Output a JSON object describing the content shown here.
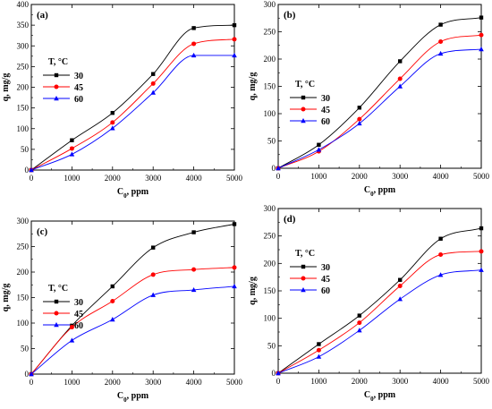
{
  "chart_data": [
    {
      "type": "line",
      "panel_label": "(a)",
      "xlabel_main": "C",
      "xlabel_sub": "0",
      "xlabel_unit": ", ppm",
      "ylabel": "q, mg/g",
      "xlim": [
        0,
        5000
      ],
      "ylim": [
        0,
        400
      ],
      "x_ticks": [
        0,
        1000,
        2000,
        3000,
        4000,
        5000
      ],
      "y_ticks": [
        0,
        50,
        100,
        150,
        200,
        250,
        300,
        350,
        400
      ],
      "legend_title": "T, °C",
      "legend_position": "left",
      "series": [
        {
          "name": "30",
          "color": "#000000",
          "marker": "square",
          "x": [
            0,
            1000,
            2000,
            3000,
            4000,
            5000
          ],
          "y": [
            0,
            72,
            138,
            232,
            343,
            350
          ]
        },
        {
          "name": "45",
          "color": "#ff0000",
          "marker": "circle",
          "x": [
            0,
            1000,
            2000,
            3000,
            4000,
            5000
          ],
          "y": [
            0,
            52,
            115,
            209,
            305,
            316
          ]
        },
        {
          "name": "60",
          "color": "#0000ff",
          "marker": "triangle",
          "x": [
            0,
            1000,
            2000,
            3000,
            4000,
            5000
          ],
          "y": [
            0,
            38,
            101,
            187,
            277,
            277
          ]
        }
      ]
    },
    {
      "type": "line",
      "panel_label": "(b)",
      "xlabel_main": "C",
      "xlabel_sub": "0",
      "xlabel_unit": ", ppm",
      "ylabel": "q, mg/g",
      "xlim": [
        0,
        5000
      ],
      "ylim": [
        0,
        300
      ],
      "x_ticks": [
        0,
        1000,
        2000,
        3000,
        4000,
        5000
      ],
      "y_ticks": [
        0,
        50,
        100,
        150,
        200,
        250,
        300
      ],
      "legend_title": "T, °C",
      "legend_position": "left",
      "series": [
        {
          "name": "30",
          "color": "#000000",
          "marker": "square",
          "x": [
            0,
            1000,
            2000,
            3000,
            4000,
            5000
          ],
          "y": [
            0,
            43,
            111,
            196,
            263,
            276
          ]
        },
        {
          "name": "45",
          "color": "#ff0000",
          "marker": "circle",
          "x": [
            0,
            1000,
            2000,
            3000,
            4000,
            5000
          ],
          "y": [
            0,
            31,
            90,
            164,
            232,
            244
          ]
        },
        {
          "name": "60",
          "color": "#0000ff",
          "marker": "triangle",
          "x": [
            0,
            1000,
            2000,
            3000,
            4000,
            5000
          ],
          "y": [
            0,
            34,
            82,
            150,
            210,
            218
          ]
        }
      ]
    },
    {
      "type": "line",
      "panel_label": "(c)",
      "xlabel_main": "C",
      "xlabel_sub": "0",
      "xlabel_unit": ", ppm",
      "ylabel": "q, mg/g",
      "xlim": [
        0,
        5000
      ],
      "ylim": [
        0,
        300
      ],
      "x_ticks": [
        0,
        1000,
        2000,
        3000,
        4000,
        5000
      ],
      "y_ticks": [
        0,
        50,
        100,
        150,
        200,
        250,
        300
      ],
      "legend_title": "T, °C",
      "legend_position": "left",
      "series": [
        {
          "name": "30",
          "color": "#000000",
          "marker": "square",
          "x": [
            0,
            1000,
            2000,
            3000,
            4000,
            5000
          ],
          "y": [
            0,
            95,
            172,
            248,
            278,
            294
          ]
        },
        {
          "name": "45",
          "color": "#ff0000",
          "marker": "circle",
          "x": [
            0,
            1000,
            2000,
            3000,
            4000,
            5000
          ],
          "y": [
            0,
            92,
            143,
            195,
            205,
            209
          ]
        },
        {
          "name": "60",
          "color": "#0000ff",
          "marker": "triangle",
          "x": [
            0,
            1000,
            2000,
            3000,
            4000,
            5000
          ],
          "y": [
            0,
            66,
            107,
            155,
            165,
            172
          ]
        }
      ]
    },
    {
      "type": "line",
      "panel_label": "(d)",
      "xlabel_main": "C",
      "xlabel_sub": "0",
      "xlabel_unit": ", ppm",
      "ylabel": "q, mg/g",
      "xlim": [
        0,
        5000
      ],
      "ylim": [
        0,
        300
      ],
      "x_ticks": [
        0,
        1000,
        2000,
        3000,
        4000,
        5000
      ],
      "y_ticks": [
        0,
        50,
        100,
        150,
        200,
        250,
        300
      ],
      "legend_title": "T, °C",
      "legend_position": "left",
      "series": [
        {
          "name": "30",
          "color": "#000000",
          "marker": "square",
          "x": [
            0,
            1000,
            2000,
            3000,
            4000,
            5000
          ],
          "y": [
            0,
            53,
            105,
            170,
            245,
            264
          ]
        },
        {
          "name": "45",
          "color": "#ff0000",
          "marker": "circle",
          "x": [
            0,
            1000,
            2000,
            3000,
            4000,
            5000
          ],
          "y": [
            0,
            42,
            92,
            159,
            216,
            222
          ]
        },
        {
          "name": "60",
          "color": "#0000ff",
          "marker": "triangle",
          "x": [
            0,
            1000,
            2000,
            3000,
            4000,
            5000
          ],
          "y": [
            0,
            30,
            78,
            135,
            179,
            188
          ]
        }
      ]
    }
  ]
}
